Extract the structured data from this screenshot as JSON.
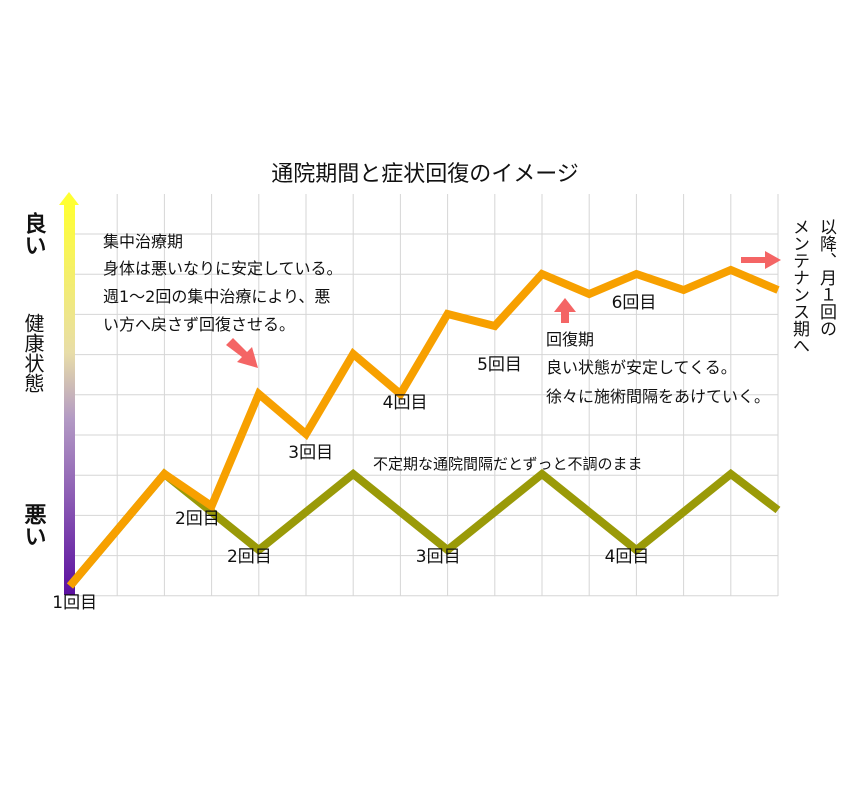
{
  "chart_data": {
    "type": "line",
    "title": "通院期間と症状回復のイメージ",
    "y_axis": {
      "top_label": "良い",
      "bottom_label": "悪い",
      "middle_label": "健康状態",
      "gradient_top": "#FFFF33",
      "gradient_bottom": "#5B0FA0"
    },
    "grid": true,
    "x_range": [
      0,
      15
    ],
    "y_range": [
      0,
      10
    ],
    "series": [
      {
        "key": "intensive",
        "color": "#F7A000",
        "x": [
          0,
          2,
          3,
          4,
          5,
          6,
          7,
          8,
          9,
          10,
          11,
          12,
          13,
          14,
          15
        ],
        "y": [
          0.2,
          3,
          2.2,
          5,
          4,
          6,
          5,
          7,
          6.7,
          8,
          7.5,
          8,
          7.6,
          8.1,
          7.6
        ]
      },
      {
        "key": "irregular",
        "color": "#9A9A08",
        "x": [
          0,
          2,
          4,
          6,
          8,
          10,
          12,
          14,
          15
        ],
        "y": [
          0.2,
          3,
          1.1,
          3,
          1.1,
          3,
          1.1,
          3,
          2.1
        ]
      }
    ],
    "point_labels": [
      {
        "text": "1回目",
        "x": 0.1,
        "y": -0.35
      },
      {
        "text": "2回目",
        "x": 2.7,
        "y": 1.75
      },
      {
        "text": "3回目",
        "x": 5.1,
        "y": 3.4
      },
      {
        "text": "4回目",
        "x": 7.1,
        "y": 4.65
      },
      {
        "text": "5回目",
        "x": 9.1,
        "y": 5.6
      },
      {
        "text": "6回目",
        "x": 11.95,
        "y": 7.15
      },
      {
        "text": "2回目",
        "x": 3.8,
        "y": 0.8
      },
      {
        "text": "3回目",
        "x": 7.8,
        "y": 0.8
      },
      {
        "text": "4回目",
        "x": 11.8,
        "y": 0.8
      }
    ],
    "annotations": {
      "intensive_title": "集中治療期",
      "intensive_line1": "身体は悪いなりに安定している。",
      "intensive_line2": "週1～2回の集中治療により、悪",
      "intensive_line3": "い方へ戻さず回復させる。",
      "recovery_title": "回復期",
      "recovery_line1": "良い状態が安定してくる。",
      "recovery_line2": "徐々に施術間隔をあけていく。",
      "irregular_note": "不定期な通院間隔だとずっと不調のまま",
      "maintenance_line1": "以降、月１回の",
      "maintenance_line2": "メンテナンス期へ",
      "arrow_color": "#F46565"
    }
  }
}
